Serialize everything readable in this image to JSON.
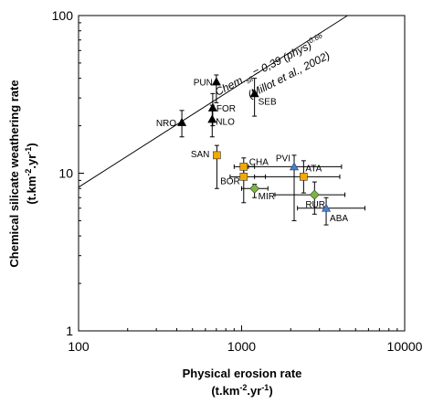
{
  "chart_data": {
    "type": "scatter",
    "x_scale": "log",
    "y_scale": "log",
    "xlim": [
      100,
      10000
    ],
    "ylim": [
      1,
      100
    ],
    "x_ticks": [
      "100",
      "1000",
      "10000"
    ],
    "y_ticks": [
      "1",
      "10",
      "100"
    ],
    "xlabel_line1": "Physical erosion rate",
    "xlabel_line2_pre": "(t.km",
    "xlabel_line2_sup": "-2",
    "xlabel_line2_mid": ".yr",
    "xlabel_line2_sup2": "-1",
    "xlabel_line2_post": ")",
    "ylabel_line1": "Chemical silicate weathering rate",
    "ylabel_line2_pre": "(t.km",
    "ylabel_line2_sup": "-2",
    "ylabel_line2_mid": ".yr",
    "ylabel_line2_sup2": "-1",
    "ylabel_line2_post": ")",
    "reference_line": {
      "equation_pre": "Chem.",
      "equation_sub": "sil",
      "equation_mid": " = 0,39 (phys)",
      "equation_sup": "0.66",
      "citation": "(Millot et al., 2002)",
      "coefficient": 0.39,
      "exponent": 0.66
    },
    "series": [
      {
        "marker": "triangle",
        "color": "#000000",
        "points": [
          {
            "label": "NRO",
            "x": 430,
            "y": 21,
            "y_err": [
              17,
              25
            ]
          },
          {
            "label": "PUN",
            "x": 700,
            "y": 38,
            "y_err": [
              28,
              42
            ]
          },
          {
            "label": "FOR",
            "x": 665,
            "y": 26,
            "y_err": [
              20,
              32
            ]
          },
          {
            "label": "NLO",
            "x": 660,
            "y": 22,
            "y_err": [
              17,
              27
            ]
          },
          {
            "label": "SEB",
            "x": 1200,
            "y": 32,
            "y_err": [
              23,
              40
            ]
          }
        ]
      },
      {
        "marker": "square",
        "color": "#f5a800",
        "points": [
          {
            "label": "SAN",
            "x": 705,
            "y": 13,
            "y_err": [
              8,
              15
            ]
          },
          {
            "label": "CHA",
            "x": 1030,
            "y": 11,
            "x_err": [
              900,
              1200
            ],
            "y_err": [
              10,
              12.5
            ]
          },
          {
            "label": "BOR",
            "x": 1030,
            "y": 9.5,
            "x_err": [
              850,
              1400
            ],
            "y_err": [
              6.5,
              11.5
            ]
          },
          {
            "label": "ATA",
            "x": 2400,
            "y": 9.5,
            "x_err": [
              1200,
              4000
            ],
            "y_err": [
              7.5,
              12
            ]
          }
        ]
      },
      {
        "marker": "triangle",
        "color": "#4a7ec6",
        "points": [
          {
            "label": "PVI",
            "x": 2100,
            "y": 11,
            "x_err": [
              1100,
              4100
            ],
            "y_err": [
              5,
              13
            ]
          },
          {
            "label": "ABA",
            "x": 3300,
            "y": 6,
            "x_err": [
              2200,
              5700
            ],
            "y_err": [
              4.7,
              7
            ]
          }
        ]
      },
      {
        "marker": "diamond",
        "color": "#7ab840",
        "points": [
          {
            "label": "MIR",
            "x": 1200,
            "y": 8,
            "x_err": [
              1000,
              1450
            ],
            "y_err": [
              7,
              8.5
            ]
          },
          {
            "label": "RUR",
            "x": 2800,
            "y": 7.3,
            "x_err": [
              1600,
              4300
            ],
            "y_err": [
              5.5,
              8.8
            ]
          }
        ]
      }
    ]
  }
}
